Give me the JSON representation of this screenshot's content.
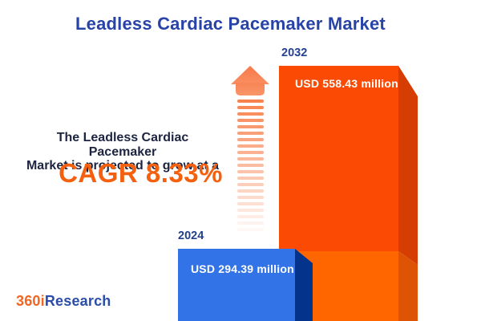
{
  "title": "Leadless Cardiac Pacemaker Market",
  "tagline": {
    "line1": "The Leadless Cardiac Pacemaker",
    "line2": "Market is projected to grow at a",
    "cagr_label": "CAGR 8.33%"
  },
  "bars": [
    {
      "year": "2024",
      "value_label": "USD 294.39 million",
      "value": 294.39,
      "front_color": "#3273E8",
      "side_color": "#03338A"
    },
    {
      "year": "2032",
      "value_label": "USD 558.43 million",
      "value": 558.43,
      "front_color_top": "#FB4A04",
      "front_color_bottom": "#FF6600",
      "side_color_top": "#D63D02",
      "side_color_bottom": "#DE5404"
    }
  ],
  "logo": {
    "prefix": "360i",
    "suffix": "Research"
  },
  "colors": {
    "title_blue": "#2843A8",
    "year_label_blue": "#24418F",
    "tagline_dark": "#1D2440",
    "cagr_orange": "#F4600E",
    "arrow_salmon": "#F88455",
    "logo_orange": "#F26522",
    "logo_blue": "#2B4CA8",
    "background": "#FFFFFF"
  },
  "chart_data": {
    "type": "bar",
    "title": "Leadless Cardiac Pacemaker Market",
    "categories": [
      "2024",
      "2032"
    ],
    "values": [
      294.39,
      558.43
    ],
    "unit": "USD million",
    "value_labels": [
      "USD 294.39 million",
      "USD 558.43 million"
    ],
    "annotations": [
      "The Leadless Cardiac Pacemaker Market is projected to grow at a CAGR 8.33%"
    ],
    "cagr_percent": 8.33,
    "orientation": "vertical",
    "style": "3d-infographic",
    "grid": false,
    "axes_visible": false,
    "legend": false
  }
}
